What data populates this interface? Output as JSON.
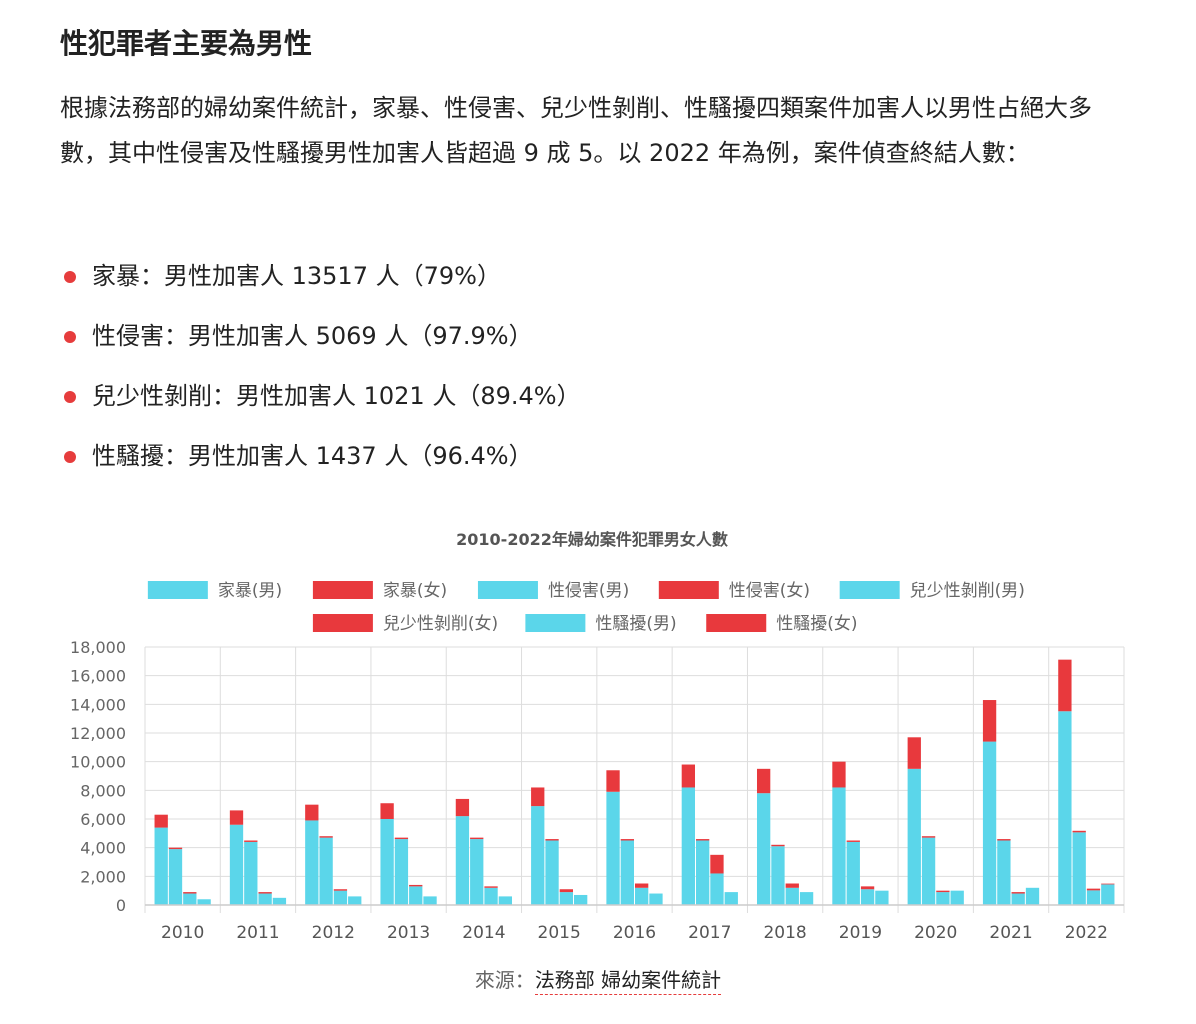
{
  "article": {
    "heading": "性犯罪者主要為男性",
    "paragraph": "根據法務部的婦幼案件統計，家暴、性侵害、兒少性剝削、性騷擾四類案件加害人以男性占絕大多數，其中性侵害及性騷擾男性加害人皆超過 9 成 5。以 2022 年為例，案件偵查終結人數：",
    "bullets": [
      "家暴：男性加害人 13517 人（79%）",
      "性侵害：男性加害人 5069 人（97.9%）",
      "兒少性剝削：男性加害人 1021 人（89.4%）",
      "性騷擾：男性加害人 1437 人（96.4%）"
    ],
    "bullet_color": "#e63c3c"
  },
  "source": {
    "label": "來源：",
    "link_text": "法務部 婦幼案件統計"
  },
  "chart_data": {
    "type": "bar",
    "stacked": true,
    "title": "2010-2022年婦幼案件犯罪男女人數",
    "categories": [
      "2010",
      "2011",
      "2012",
      "2013",
      "2014",
      "2015",
      "2016",
      "2017",
      "2018",
      "2019",
      "2020",
      "2021",
      "2022"
    ],
    "groups": [
      "家暴",
      "性侵害",
      "兒少性剝削",
      "性騷擾"
    ],
    "series": [
      {
        "name": "家暴(男)",
        "stack": "家暴",
        "color": "#5bd6ea",
        "values": [
          5400,
          5600,
          5900,
          6000,
          6200,
          6900,
          7900,
          8200,
          7800,
          8200,
          9500,
          11400,
          13517
        ]
      },
      {
        "name": "家暴(女)",
        "stack": "家暴",
        "color": "#e8393d",
        "values": [
          900,
          1000,
          1100,
          1100,
          1200,
          1300,
          1500,
          1600,
          1700,
          1800,
          2200,
          2900,
          3600
        ]
      },
      {
        "name": "性侵害(男)",
        "stack": "性侵害",
        "color": "#5bd6ea",
        "values": [
          3900,
          4400,
          4700,
          4600,
          4600,
          4500,
          4500,
          4500,
          4100,
          4400,
          4700,
          4500,
          5069
        ]
      },
      {
        "name": "性侵害(女)",
        "stack": "性侵害",
        "color": "#e8393d",
        "values": [
          100,
          100,
          100,
          100,
          100,
          100,
          100,
          100,
          100,
          100,
          100,
          100,
          108
        ]
      },
      {
        "name": "兒少性剝削(男)",
        "stack": "兒少性剝削",
        "color": "#5bd6ea",
        "values": [
          800,
          800,
          1000,
          1300,
          1200,
          900,
          1200,
          2200,
          1200,
          1100,
          900,
          800,
          1021
        ]
      },
      {
        "name": "兒少性剝削(女)",
        "stack": "兒少性剝削",
        "color": "#e8393d",
        "values": [
          100,
          100,
          100,
          100,
          100,
          200,
          300,
          1300,
          300,
          200,
          100,
          100,
          121
        ]
      },
      {
        "name": "性騷擾(男)",
        "stack": "性騷擾",
        "color": "#5bd6ea",
        "values": [
          400,
          500,
          600,
          600,
          600,
          700,
          800,
          900,
          900,
          1000,
          1000,
          1200,
          1437
        ]
      },
      {
        "name": "性騷擾(女)",
        "stack": "性騷擾",
        "color": "#e8393d",
        "values": [
          0,
          0,
          0,
          0,
          0,
          0,
          0,
          0,
          0,
          0,
          0,
          0,
          54
        ]
      }
    ],
    "ylim": [
      0,
      18000
    ],
    "yticks": [
      0,
      2000,
      4000,
      6000,
      8000,
      10000,
      12000,
      14000,
      16000,
      18000
    ],
    "grid": true,
    "legend": "top-center",
    "colors": {
      "male": "#5bd6ea",
      "female": "#e8393d",
      "grid": "#dddddd",
      "axis": "#cccccc"
    }
  }
}
